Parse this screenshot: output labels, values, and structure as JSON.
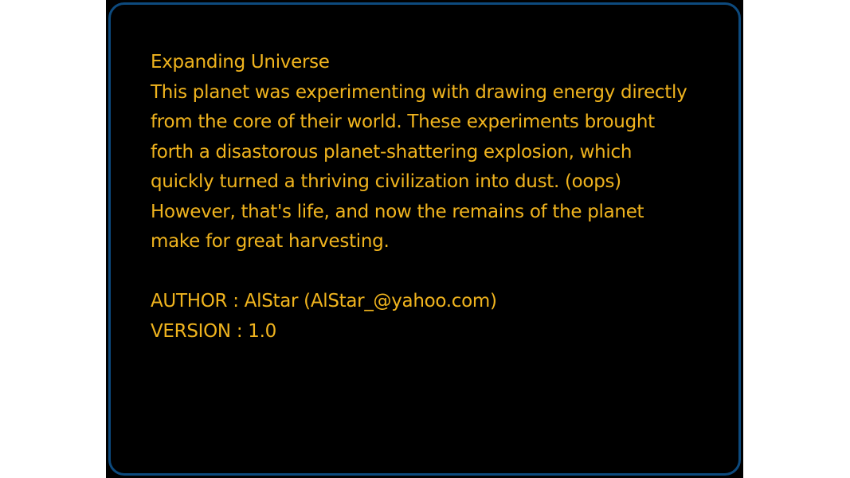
{
  "colors": {
    "background": "#000000",
    "frame_border": "#0d4a7e",
    "text": "#f0b41e"
  },
  "level": {
    "title": "Expanding Universe",
    "description_lines": [
      "This planet was experimenting with drawing energy directly",
      "from the core of their world. These experiments brought",
      "forth a disastorous planet-shattering explosion, which",
      "quickly turned a thriving civilization into dust. (oops)",
      "However, that's life, and now the remains of the planet",
      "make for great harvesting."
    ],
    "author_line": "AUTHOR : AlStar (AlStar_@yahoo.com)",
    "version_line": "VERSION : 1.0"
  }
}
